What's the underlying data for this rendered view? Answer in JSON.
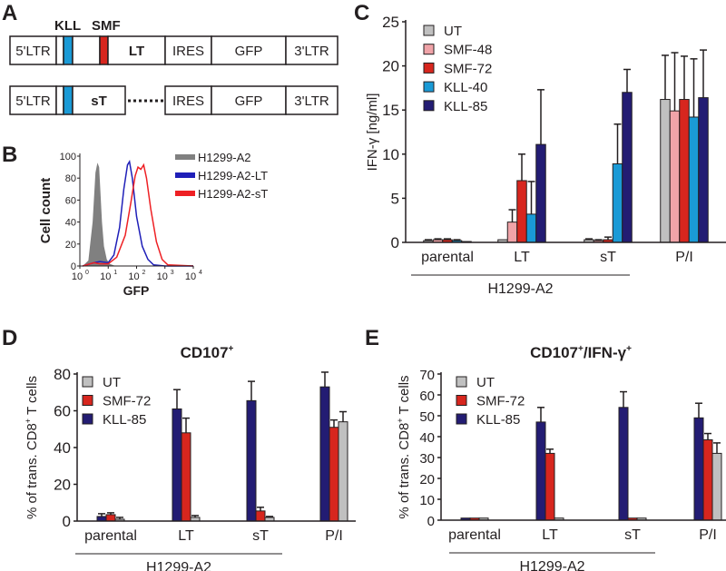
{
  "panels": {
    "a": "A",
    "b": "B",
    "c": "C",
    "d": "D",
    "e": "E"
  },
  "construct": {
    "kll": "KLL",
    "smf": "SMF",
    "row1": [
      "5'LTR",
      "",
      "",
      "",
      "",
      "LT",
      "IRES",
      "GFP",
      "3'LTR"
    ],
    "row2": [
      "5'LTR",
      "",
      "",
      "sT",
      "IRES",
      "GFP",
      "3'LTR"
    ],
    "colors": {
      "kll": "#1a9ad6",
      "smf": "#d7261e"
    }
  },
  "chart_data": [
    {
      "id": "B",
      "type": "line",
      "xlabel": "GFP",
      "ylabel": "Cell count",
      "xscale": "log",
      "xlim": [
        1,
        10000
      ],
      "ylim": [
        0,
        100
      ],
      "xticks": [
        "10",
        "10",
        "10",
        "10",
        "10"
      ],
      "xtick_exp": [
        "0",
        "1",
        "2",
        "3",
        "4"
      ],
      "yticks": [
        "0",
        "20",
        "40",
        "60",
        "80",
        "100"
      ],
      "legend": "top-right",
      "series": [
        {
          "name": "H1299-A2",
          "color": "#808080",
          "fill": true,
          "log_x": [
            0.1,
            0.3,
            0.45,
            0.55,
            0.62,
            0.68,
            0.72,
            0.78,
            0.85,
            0.95,
            1.05,
            1.2,
            1.4
          ],
          "y": [
            0,
            5,
            40,
            85,
            94,
            90,
            70,
            40,
            18,
            6,
            2,
            0.5,
            0
          ]
        },
        {
          "name": "H1299-A2-LT",
          "color": "#1f1fb8",
          "fill": false,
          "log_x": [
            0.1,
            0.5,
            0.7,
            1.0,
            1.2,
            1.4,
            1.55,
            1.68,
            1.75,
            1.85,
            2.0,
            2.2,
            2.4,
            2.6,
            3.0,
            4.0
          ],
          "y": [
            0,
            3,
            4,
            3,
            10,
            35,
            70,
            92,
            95,
            80,
            45,
            18,
            6,
            1,
            0,
            0
          ]
        },
        {
          "name": "H1299-A2-sT",
          "color": "#ee2024",
          "fill": false,
          "log_x": [
            0.1,
            0.5,
            0.7,
            1.0,
            1.3,
            1.6,
            1.8,
            1.95,
            2.05,
            2.15,
            2.25,
            2.35,
            2.5,
            2.7,
            2.9,
            3.1,
            4.0
          ],
          "y": [
            0,
            3,
            2,
            2,
            8,
            28,
            58,
            82,
            90,
            88,
            92,
            80,
            52,
            22,
            6,
            1,
            0
          ]
        }
      ]
    },
    {
      "id": "C",
      "type": "bar",
      "title": "",
      "ylabel": "IFN-γ [ng/ml]",
      "ylim": [
        0,
        25
      ],
      "yticks": [
        "0",
        "5",
        "10",
        "15",
        "20",
        "25"
      ],
      "categories": [
        "parental",
        "LT",
        "sT",
        "P/I"
      ],
      "group_label": "H1299-A2",
      "legend": "top-left",
      "series": [
        {
          "name": "UT",
          "color": "#c0c0c0",
          "values": [
            0.2,
            0.3,
            0.3,
            16.2
          ],
          "err": [
            0.1,
            0,
            0.1,
            5.0
          ]
        },
        {
          "name": "SMF-48",
          "color": "#f0a3a8",
          "values": [
            0.3,
            2.3,
            0.2,
            14.9
          ],
          "err": [
            0.1,
            1.4,
            0.1,
            6.6
          ]
        },
        {
          "name": "SMF-72",
          "color": "#d7261e",
          "values": [
            0.3,
            7.0,
            0.3,
            16.2
          ],
          "err": [
            0.1,
            3.0,
            0.3,
            4.9
          ]
        },
        {
          "name": "KLL-40",
          "color": "#1a9ad6",
          "values": [
            0.2,
            3.2,
            8.9,
            14.2
          ],
          "err": [
            0.1,
            3.7,
            4.5,
            6.6
          ]
        },
        {
          "name": "KLL-85",
          "color": "#231c73",
          "values": [
            0.1,
            11.1,
            17.0,
            16.4
          ],
          "err": [
            0,
            6.2,
            2.6,
            5.4
          ]
        }
      ]
    },
    {
      "id": "D",
      "type": "bar",
      "title": "CD107",
      "title_sup": "+",
      "ylabel": "% of trans. CD8",
      "ylabel_sup": "+",
      "ylabel_tail": " T cells",
      "ylim": [
        0,
        80
      ],
      "yticks": [
        "0",
        "20",
        "40",
        "60",
        "80"
      ],
      "categories": [
        "parental",
        "LT",
        "sT",
        "P/I"
      ],
      "group_label": "H1299-A2",
      "legend": "top-left",
      "series": [
        {
          "name": "KLL-85",
          "color": "#231c73",
          "values": [
            2.5,
            61,
            65.5,
            73
          ],
          "err": [
            1.5,
            10.5,
            10.5,
            8
          ]
        },
        {
          "name": "SMF-72",
          "color": "#d7261e",
          "values": [
            3.5,
            48,
            5.5,
            51
          ],
          "err": [
            1,
            8,
            2,
            4
          ]
        },
        {
          "name": "UT",
          "color": "#c0c0c0",
          "values": [
            1,
            2,
            2,
            54
          ],
          "err": [
            1,
            1,
            0.5,
            5.5
          ]
        }
      ],
      "legend_order": [
        2,
        1,
        0
      ]
    },
    {
      "id": "E",
      "type": "bar",
      "title": "CD107",
      "title_sup": "+",
      "title_mid": "/IFN-γ",
      "title_sup2": "+",
      "ylabel": "% of trans. CD8",
      "ylabel_sup": "+",
      "ylabel_tail": " T cells",
      "ylim": [
        0,
        70
      ],
      "yticks": [
        "0",
        "10",
        "20",
        "30",
        "40",
        "50",
        "60",
        "70"
      ],
      "categories": [
        "parental",
        "LT",
        "sT",
        "P/I"
      ],
      "group_label": "H1299-A2",
      "legend": "top-left",
      "series": [
        {
          "name": "KLL-85",
          "color": "#231c73",
          "values": [
            1,
            47,
            54,
            49
          ],
          "err": [
            0,
            7,
            7.5,
            7
          ]
        },
        {
          "name": "SMF-72",
          "color": "#d7261e",
          "values": [
            1,
            32,
            1,
            38.5
          ],
          "err": [
            0,
            2,
            0,
            3
          ]
        },
        {
          "name": "UT",
          "color": "#c0c0c0",
          "values": [
            1,
            1,
            1,
            32
          ],
          "err": [
            0,
            0,
            0,
            5
          ]
        }
      ],
      "legend_order": [
        2,
        1,
        0
      ]
    }
  ]
}
